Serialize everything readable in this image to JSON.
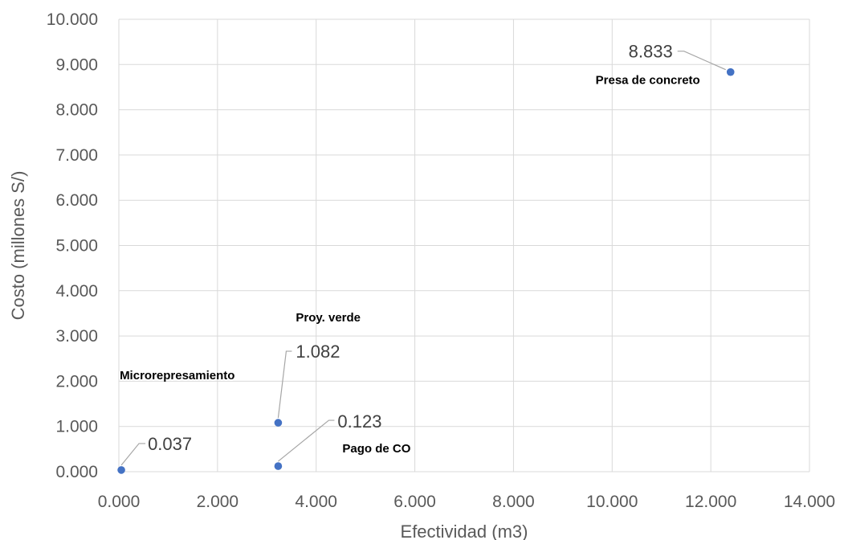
{
  "chart_data": {
    "type": "scatter",
    "title": "",
    "xlabel": "Efectividad (m3)",
    "ylabel": "Costo (millones S/)",
    "xlim": [
      0,
      14000
    ],
    "ylim": [
      0,
      10000
    ],
    "grid": true,
    "legend": "none",
    "marker_color": "#4472c4",
    "x_ticks": [
      "0.000",
      "2.000",
      "4.000",
      "6.000",
      "8.000",
      "10.000",
      "12.000",
      "14.000"
    ],
    "y_ticks": [
      "0.000",
      "1.000",
      "2.000",
      "3.000",
      "4.000",
      "5.000",
      "6.000",
      "7.000",
      "8.000",
      "9.000",
      "10.000"
    ],
    "points": [
      {
        "name": "Microrepresamiento",
        "x": 50,
        "y": 37,
        "value_label": "0.037"
      },
      {
        "name": "Proy. verde",
        "x": 3230,
        "y": 1082,
        "value_label": "1.082"
      },
      {
        "name": "Pago de CO",
        "x": 3230,
        "y": 123,
        "value_label": "0.123"
      },
      {
        "name": "Presa de concreto",
        "x": 12400,
        "y": 8833,
        "value_label": "8.833"
      }
    ]
  }
}
